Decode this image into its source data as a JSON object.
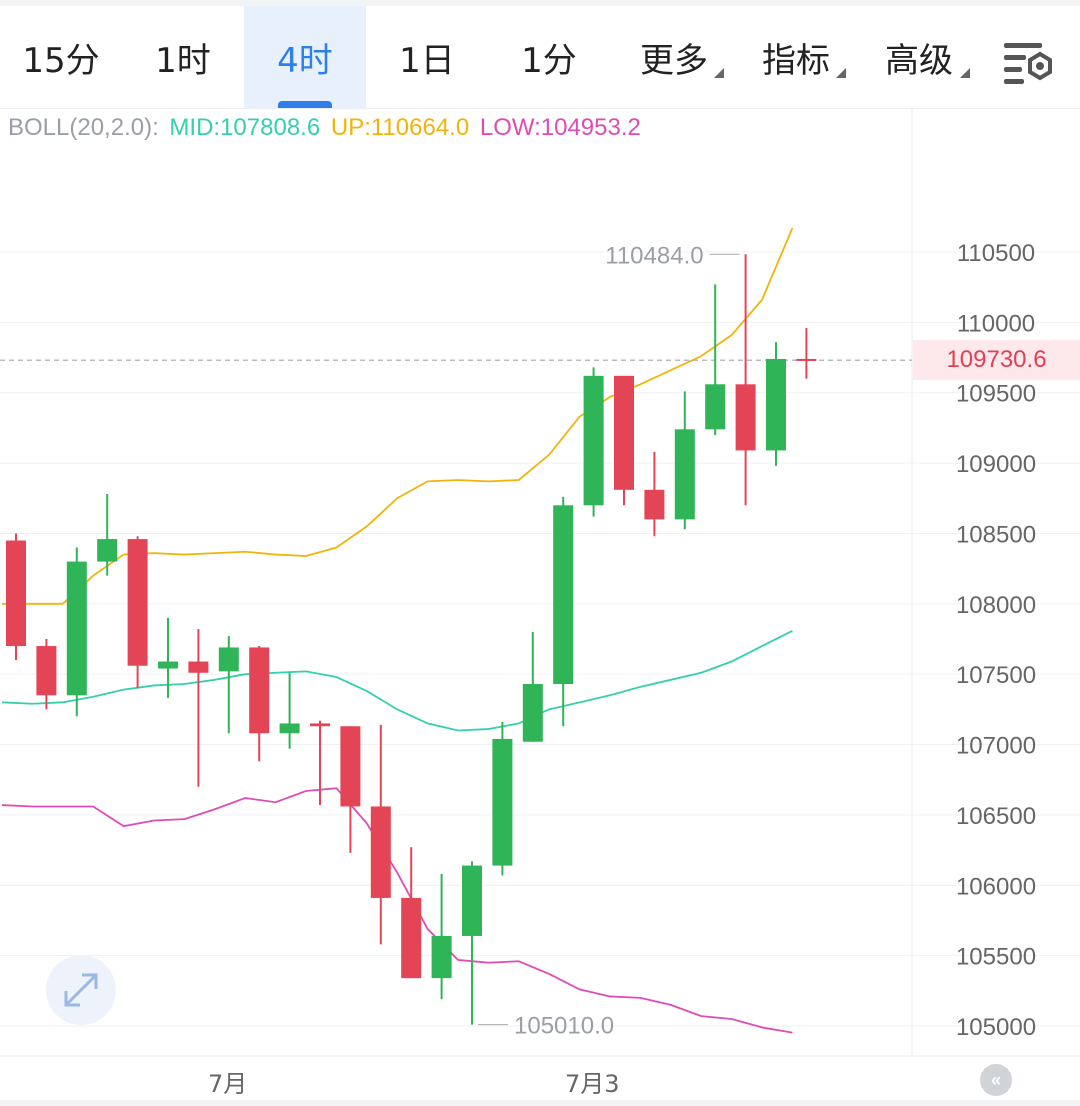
{
  "tabs": [
    {
      "label": "15分",
      "active": false
    },
    {
      "label": "1时",
      "active": false
    },
    {
      "label": "4时",
      "active": true
    },
    {
      "label": "1日",
      "active": false
    },
    {
      "label": "1分",
      "active": false
    },
    {
      "label": "更多",
      "active": false,
      "dropdown": true
    },
    {
      "label": "指标",
      "active": false,
      "dropdown": true
    },
    {
      "label": "高级",
      "active": false,
      "dropdown": true
    }
  ],
  "settings_icon": "chart-settings-icon",
  "indicator": {
    "name": "BOLL(20,2.0):",
    "mid": "MID:107808.6",
    "up": "UP:110664.0",
    "low": "LOW:104953.2"
  },
  "current_price": "109730.6",
  "high_marker": "110484.0",
  "low_marker": "105010.0",
  "x_labels": [
    "7月",
    "7月3"
  ],
  "colors": {
    "up": "#2fb457",
    "down": "#e44556",
    "mid": "#35cfb0",
    "upper": "#f2b30c",
    "lower": "#e04cb6",
    "accent": "#2f7fe8"
  },
  "chart_data": {
    "type": "candlestick",
    "y_ticks": [
      110500,
      110000,
      109500,
      109000,
      108500,
      108000,
      107500,
      107000,
      106500,
      106000,
      105500,
      105000
    ],
    "candles": [
      {
        "o": 108450,
        "h": 108500,
        "l": 107600,
        "c": 107700
      },
      {
        "o": 107700,
        "h": 107750,
        "l": 107250,
        "c": 107350
      },
      {
        "o": 107350,
        "h": 108400,
        "l": 107200,
        "c": 108300
      },
      {
        "o": 108300,
        "h": 108780,
        "l": 108200,
        "c": 108460
      },
      {
        "o": 108460,
        "h": 108480,
        "l": 107400,
        "c": 107560
      },
      {
        "o": 107540,
        "h": 107900,
        "l": 107330,
        "c": 107590
      },
      {
        "o": 107590,
        "h": 107820,
        "l": 106700,
        "c": 107510
      },
      {
        "o": 107520,
        "h": 107770,
        "l": 107080,
        "c": 107690
      },
      {
        "o": 107690,
        "h": 107700,
        "l": 106880,
        "c": 107080
      },
      {
        "o": 107080,
        "h": 107510,
        "l": 106970,
        "c": 107150
      },
      {
        "o": 107150,
        "h": 107170,
        "l": 106570,
        "c": 107130
      },
      {
        "o": 107130,
        "h": 107130,
        "l": 106230,
        "c": 106560
      },
      {
        "o": 106560,
        "h": 107140,
        "l": 105580,
        "c": 105910
      },
      {
        "o": 105910,
        "h": 106270,
        "l": 105340,
        "c": 105340
      },
      {
        "o": 105340,
        "h": 106080,
        "l": 105190,
        "c": 105640
      },
      {
        "o": 105640,
        "h": 106170,
        "l": 105010,
        "c": 106140
      },
      {
        "o": 106140,
        "h": 107160,
        "l": 106070,
        "c": 107040
      },
      {
        "o": 107020,
        "h": 107800,
        "l": 107020,
        "c": 107430
      },
      {
        "o": 107430,
        "h": 108760,
        "l": 107130,
        "c": 108700
      },
      {
        "o": 108700,
        "h": 109680,
        "l": 108620,
        "c": 109620
      },
      {
        "o": 109620,
        "h": 109620,
        "l": 108700,
        "c": 108810
      },
      {
        "o": 108810,
        "h": 109080,
        "l": 108480,
        "c": 108600
      },
      {
        "o": 108600,
        "h": 109510,
        "l": 108530,
        "c": 109240
      },
      {
        "o": 109240,
        "h": 110270,
        "l": 109200,
        "c": 109560
      },
      {
        "o": 109560,
        "h": 110484,
        "l": 108700,
        "c": 109090
      },
      {
        "o": 109090,
        "h": 109860,
        "l": 108980,
        "c": 109740
      },
      {
        "o": 109740,
        "h": 109960,
        "l": 109600,
        "c": 109730
      }
    ],
    "boll_up": [
      108000,
      108000,
      108000,
      108200,
      108350,
      108360,
      108350,
      108360,
      108370,
      108350,
      108340,
      108400,
      108550,
      108750,
      108870,
      108880,
      108870,
      108880,
      109060,
      109330,
      109470,
      109560,
      109660,
      109760,
      109910,
      110160,
      110670
    ],
    "boll_mid": [
      107300,
      107290,
      107300,
      107340,
      107390,
      107420,
      107430,
      107460,
      107500,
      107510,
      107520,
      107480,
      107380,
      107250,
      107150,
      107100,
      107110,
      107150,
      107250,
      107300,
      107350,
      107410,
      107460,
      107510,
      107590,
      107700,
      107808
    ],
    "boll_low": [
      106570,
      106560,
      106560,
      106560,
      106420,
      106460,
      106470,
      106540,
      106620,
      106590,
      106670,
      106690,
      106440,
      106090,
      105690,
      105470,
      105450,
      105460,
      105370,
      105260,
      105210,
      105200,
      105150,
      105070,
      105050,
      104990,
      104953
    ]
  }
}
